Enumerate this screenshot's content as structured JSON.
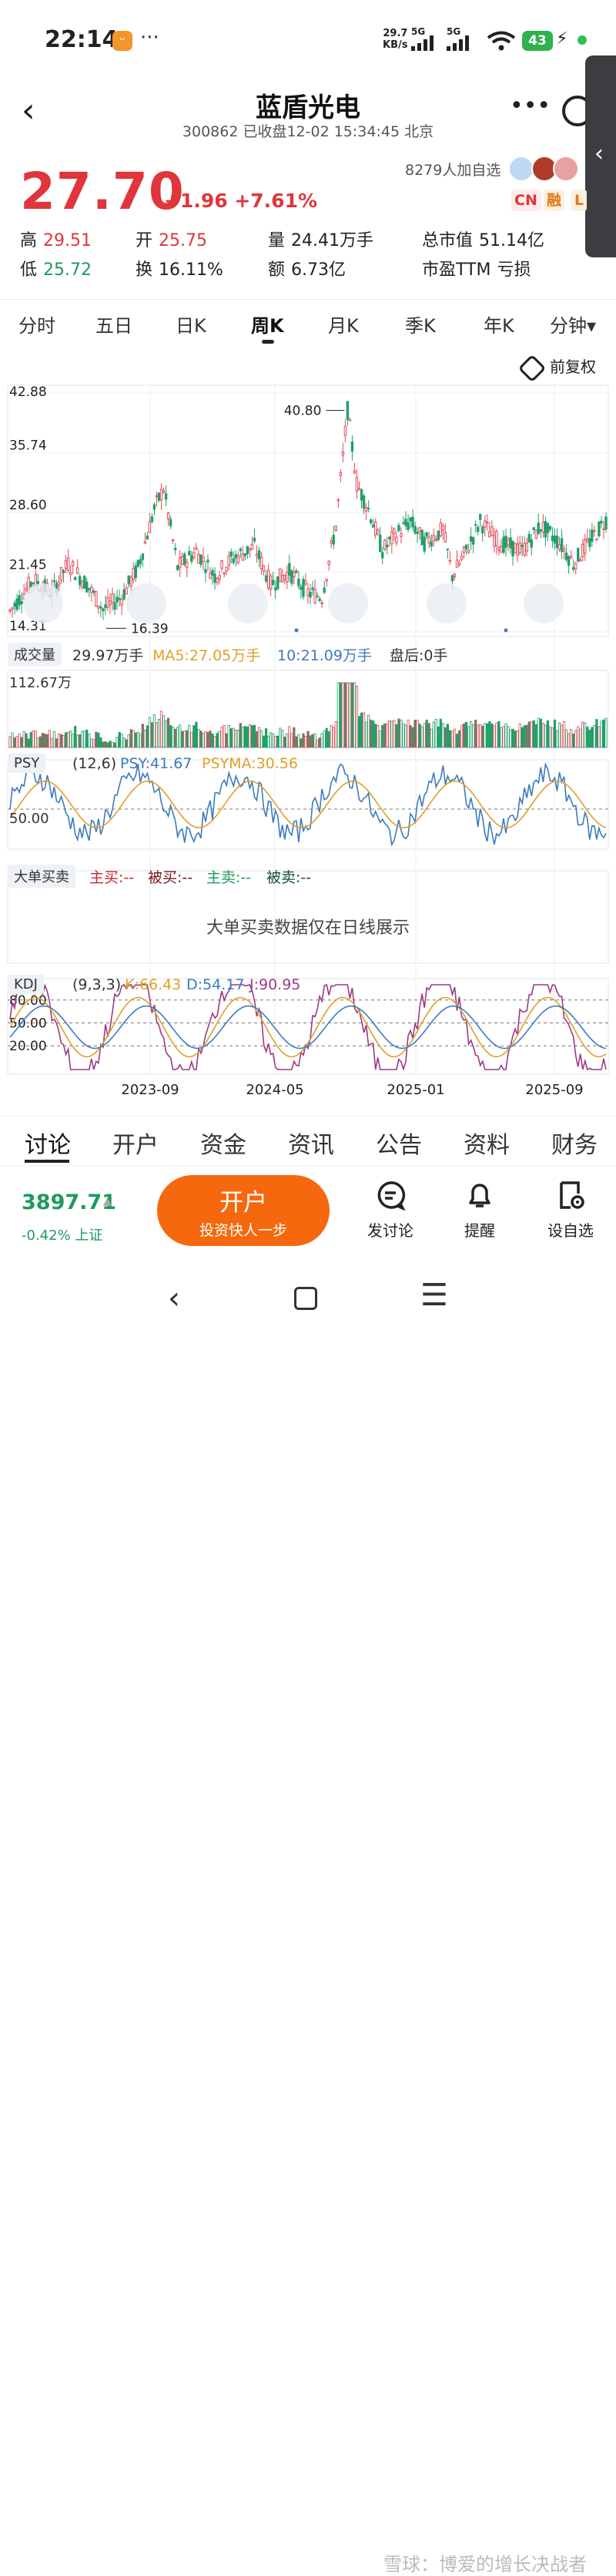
{
  "status_bar": {
    "time": "22:14",
    "speed_value": "29.7",
    "speed_unit": "KB/s",
    "sim1": "5G",
    "sim2": "5G",
    "battery": "43"
  },
  "header": {
    "title": "蓝盾光电",
    "subtitle": "300862 已收盘12-02 15:34:45 北京"
  },
  "quote": {
    "price": "27.70",
    "change": "+1.96 +7.61%",
    "followers": "8279人加自选",
    "tags": [
      "CN",
      "融",
      "L"
    ],
    "stats": [
      {
        "label": "高",
        "value": "29.51",
        "color": "red"
      },
      {
        "label": "开",
        "value": "25.75",
        "color": "red"
      },
      {
        "label": "量",
        "value": "24.41万手",
        "color": "dark"
      },
      {
        "label": "总市值",
        "value": "51.14亿",
        "color": "dark"
      },
      {
        "label": "低",
        "value": "25.72",
        "color": "green"
      },
      {
        "label": "换",
        "value": "16.11%",
        "color": "dark"
      },
      {
        "label": "额",
        "value": "6.73亿",
        "color": "dark"
      },
      {
        "label": "市盈TTM",
        "value": "亏损",
        "color": "dark"
      }
    ]
  },
  "period_tabs": [
    "分时",
    "五日",
    "日K",
    "周K",
    "月K",
    "季K",
    "年K",
    "分钟▾"
  ],
  "active_tab": "周K",
  "adjust_label": "前复权",
  "price_chart": {
    "y_ticks": [
      "42.88",
      "35.74",
      "28.60",
      "21.45",
      "14.31"
    ],
    "ylim": [
      14.31,
      42.88
    ],
    "high_marker": "40.80",
    "low_marker": "16.39",
    "x_ticks": [
      "2023-09",
      "2024-05",
      "2025-01",
      "2025-09"
    ],
    "colors": {
      "up": "#e24a5a",
      "down": "#21a06a",
      "ma_orange": "#e8a33a",
      "ma_blue": "#3c7bbf",
      "ma_purple": "#9c3a86"
    }
  },
  "volume": {
    "label": "成交量",
    "value": "29.97万手",
    "ma5": "MA5:27.05万手",
    "ma10": "10:21.09万手",
    "after": "盘后:0手",
    "axis_top": "112.67万"
  },
  "psy": {
    "label": "PSY",
    "params": "(12,6)",
    "psy": "PSY:41.67",
    "psyma": "PSYMA:30.56",
    "level": "50.00"
  },
  "big_order": {
    "label": "大单买卖",
    "main_buy": "主买:--",
    "passive_buy": "被买:--",
    "main_sell": "主卖:--",
    "passive_sell": "被卖:--",
    "notice": "大单买卖数据仅在日线展示"
  },
  "kdj": {
    "label": "KDJ",
    "params": "(9,3,3)",
    "k": "K:66.43",
    "d": "D:54.17",
    "j": "J:90.95",
    "levels": [
      "80.00",
      "50.00",
      "20.00"
    ]
  },
  "bottom_tabs": [
    "讨论",
    "开户",
    "资金",
    "资讯",
    "公告",
    "资料",
    "财务"
  ],
  "footer": {
    "index_value": "3897.71",
    "index_change": "-0.42% 上证",
    "open_title": "开户",
    "open_sub": "投资快人一步",
    "post": "发讨论",
    "remind": "提醒",
    "watchlist": "设自选"
  },
  "watermark": "雪球：博爱的增长决战者"
}
